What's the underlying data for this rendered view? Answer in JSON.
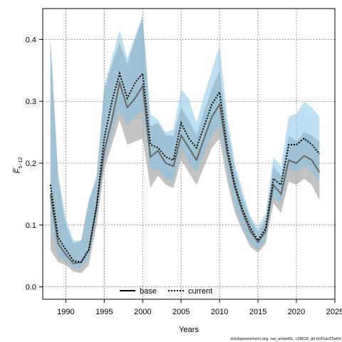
{
  "chart_data": {
    "type": "line",
    "xlabel": "Years",
    "ylabel_main": "F",
    "ylabel_sub": "5−12",
    "xlim": [
      1987,
      2025
    ],
    "ylim": [
      -0.02,
      0.45
    ],
    "xticks": [
      1990,
      1995,
      2000,
      2005,
      2010,
      2015,
      2020,
      2025
    ],
    "yticks": [
      0.0,
      0.1,
      0.2,
      0.3,
      0.4
    ],
    "ytick_labels": [
      "0.0",
      "0.1",
      "0.2",
      "0.3",
      "0.4"
    ],
    "grid": true,
    "legend_position": "bottom-center",
    "x": [
      1988,
      1989,
      1990,
      1991,
      1992,
      1993,
      1994,
      1995,
      1996,
      1997,
      1998,
      1999,
      2000,
      2001,
      2002,
      2003,
      2004,
      2005,
      2006,
      2007,
      2008,
      2009,
      2010,
      2011,
      2012,
      2013,
      2014,
      2015,
      2016,
      2017,
      2018,
      2019,
      2020,
      2021,
      2022,
      2023
    ],
    "series": [
      {
        "name": "base",
        "line_style": "solid",
        "line_color": "#666666",
        "band_color": "#999999",
        "values": [
          0.15,
          0.07,
          0.052,
          0.038,
          0.04,
          0.06,
          0.13,
          0.22,
          0.27,
          0.33,
          0.29,
          0.305,
          0.325,
          0.21,
          0.22,
          0.2,
          0.195,
          0.245,
          0.225,
          0.205,
          0.24,
          0.275,
          0.295,
          0.215,
          0.16,
          0.12,
          0.09,
          0.072,
          0.09,
          0.165,
          0.15,
          0.205,
          0.2,
          0.212,
          0.205,
          0.185
        ],
        "lower": [
          0.06,
          0.04,
          0.035,
          0.025,
          0.022,
          0.035,
          0.1,
          0.19,
          0.23,
          0.27,
          0.23,
          0.235,
          0.24,
          0.16,
          0.18,
          0.165,
          0.16,
          0.205,
          0.185,
          0.165,
          0.195,
          0.225,
          0.24,
          0.17,
          0.12,
          0.09,
          0.065,
          0.055,
          0.07,
          0.135,
          0.12,
          0.17,
          0.165,
          0.175,
          0.165,
          0.14
        ],
        "upper": [
          0.4,
          0.175,
          0.1,
          0.07,
          0.075,
          0.14,
          0.175,
          0.32,
          0.36,
          0.395,
          0.36,
          0.4,
          0.435,
          0.26,
          0.265,
          0.245,
          0.245,
          0.29,
          0.27,
          0.245,
          0.285,
          0.32,
          0.35,
          0.255,
          0.19,
          0.145,
          0.11,
          0.088,
          0.11,
          0.195,
          0.18,
          0.245,
          0.235,
          0.25,
          0.245,
          0.235
        ]
      },
      {
        "name": "current",
        "line_style": "dotted",
        "line_color": "#000000",
        "band_color": "#7ec1e6",
        "values": [
          0.165,
          0.08,
          0.06,
          0.042,
          0.04,
          0.06,
          0.13,
          0.24,
          0.3,
          0.345,
          0.305,
          0.33,
          0.345,
          0.23,
          0.225,
          0.21,
          0.205,
          0.265,
          0.24,
          0.225,
          0.26,
          0.295,
          0.315,
          0.225,
          0.165,
          0.125,
          0.095,
          0.075,
          0.095,
          0.175,
          0.165,
          0.23,
          0.23,
          0.24,
          0.23,
          0.215
        ],
        "lower": [
          0.1,
          0.05,
          0.04,
          0.03,
          0.03,
          0.045,
          0.11,
          0.2,
          0.25,
          0.285,
          0.26,
          0.275,
          0.285,
          0.19,
          0.19,
          0.175,
          0.17,
          0.225,
          0.2,
          0.185,
          0.215,
          0.245,
          0.26,
          0.185,
          0.13,
          0.095,
          0.07,
          0.06,
          0.075,
          0.145,
          0.135,
          0.19,
          0.185,
          0.195,
          0.185,
          0.17
        ],
        "upper": [
          0.405,
          0.185,
          0.11,
          0.075,
          0.075,
          0.14,
          0.18,
          0.325,
          0.37,
          0.415,
          0.37,
          0.405,
          0.44,
          0.28,
          0.27,
          0.25,
          0.255,
          0.32,
          0.305,
          0.265,
          0.31,
          0.35,
          0.39,
          0.275,
          0.2,
          0.155,
          0.115,
          0.095,
          0.12,
          0.21,
          0.195,
          0.275,
          0.28,
          0.3,
          0.29,
          0.275
        ]
      }
    ],
    "legend": [
      {
        "label": "base",
        "style": "solid"
      },
      {
        "label": "current",
        "style": "dotted"
      }
    ]
  },
  "footer": "stockassessment.org, sas_anleel01, r18619, git:0c61ac53a0d"
}
